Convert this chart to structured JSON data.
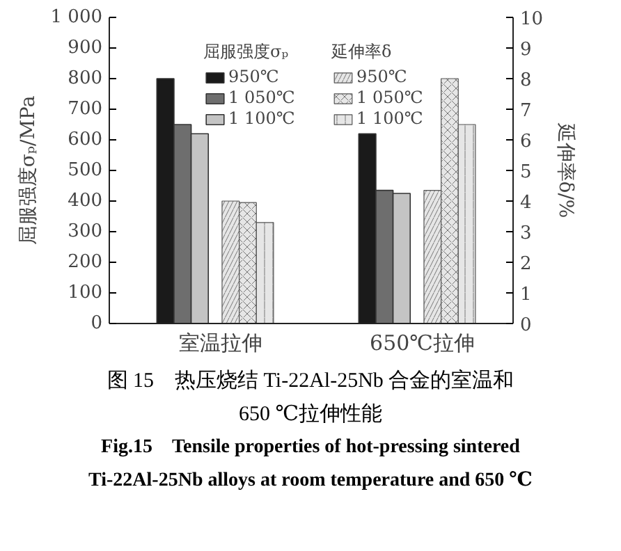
{
  "chart_data": {
    "type": "bar",
    "categories": [
      "室温拉伸",
      "650℃拉伸"
    ],
    "ylabel": "屈服强度σₚ/MPa",
    "y2label": "延伸率δ/%",
    "ylim": [
      0,
      1000
    ],
    "yticks": [
      0,
      100,
      200,
      300,
      400,
      500,
      600,
      700,
      800,
      900,
      {
        "value": 1000,
        "label": "1 000"
      }
    ],
    "y2lim": [
      0,
      10
    ],
    "y2ticks": [
      0,
      1,
      2,
      3,
      4,
      5,
      6,
      7,
      8,
      9,
      10
    ],
    "grid": false,
    "legend": "top",
    "annotations": [
      "屈服强度σₚ",
      "延伸率δ",
      "图 15　热压烧结 Ti-22Al-25Nb 合金的室温和",
      "650 ℃拉伸性能",
      "Fig.15　Tensile properties of hot-pressing sintered",
      "Ti-22Al-25Nb alloys at room temperature and 650 ℃"
    ],
    "series": [
      {
        "name": "950℃",
        "color": "#1a1a1a",
        "values": [
          800,
          620
        ]
      },
      {
        "name": "1 050℃",
        "color": "#6e6e6e",
        "values": [
          650,
          435
        ]
      },
      {
        "name": "1 100℃",
        "color": "#c4c4c4",
        "values": [
          620,
          425
        ]
      },
      {
        "name": "950℃",
        "color": "#e6e6e6",
        "axis": "y2",
        "values": [
          4.0,
          4.35
        ]
      },
      {
        "name": "1 050℃",
        "color": "#e6e6e6",
        "axis": "y2",
        "values": [
          3.95,
          8.0
        ]
      },
      {
        "name": "1 100℃",
        "color": "#e6e6e6",
        "axis": "y2",
        "values": [
          3.3,
          6.5
        ]
      }
    ]
  }
}
